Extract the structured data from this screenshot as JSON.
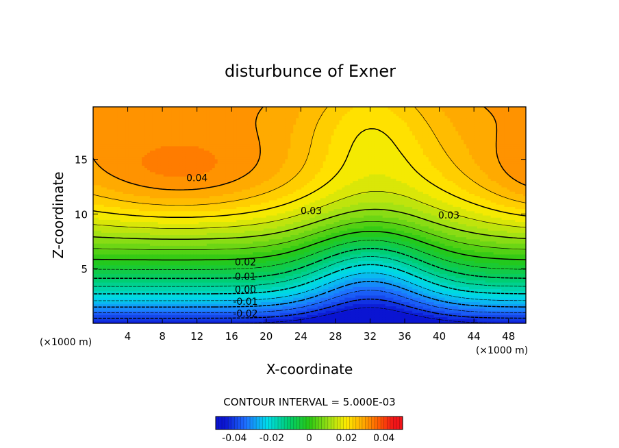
{
  "chart_data": {
    "type": "heatmap",
    "subtype": "filled-contour",
    "title": "disturbunce of Exner",
    "xlabel": "X-coordinate",
    "ylabel": "Z-coordinate",
    "x_unit": "(×1000 m)",
    "y_unit": "(×1000 m)",
    "xlim": [
      0,
      50
    ],
    "ylim": [
      0,
      19.8
    ],
    "x_ticks": [
      4,
      8,
      12,
      16,
      20,
      24,
      28,
      32,
      36,
      40,
      44,
      48
    ],
    "y_ticks": [
      5,
      10,
      15
    ],
    "contour_interval_text": "CONTOUR INTERVAL = 5.000E-03",
    "contour_interval": 0.005,
    "negative_contours": "dashed",
    "contour_labels": [
      {
        "text": "0.04",
        "x": 12,
        "z": 13.3
      },
      {
        "text": "0.03",
        "x": 25.2,
        "z": 10.3
      },
      {
        "text": "0.03",
        "x": 41.1,
        "z": 9.9
      },
      {
        "text": "0.02",
        "x": 17.6,
        "z": 5.6
      },
      {
        "text": "0.01",
        "x": 17.6,
        "z": 4.3
      },
      {
        "text": "0.00",
        "x": 17.6,
        "z": 3.1
      },
      {
        "text": "-0.01",
        "x": 17.6,
        "z": 2.0
      },
      {
        "text": "-0.02",
        "x": 17.6,
        "z": 0.9
      }
    ],
    "field_range": [
      -0.045,
      0.045
    ],
    "colorbar": {
      "range": [
        -0.05,
        0.05
      ],
      "ticks": [
        -0.04,
        -0.02,
        0,
        0.02,
        0.04
      ],
      "tick_labels": [
        "-0.04",
        "-0.02",
        "0",
        "0.02",
        "0.04"
      ],
      "colormap": "rainbow"
    }
  }
}
